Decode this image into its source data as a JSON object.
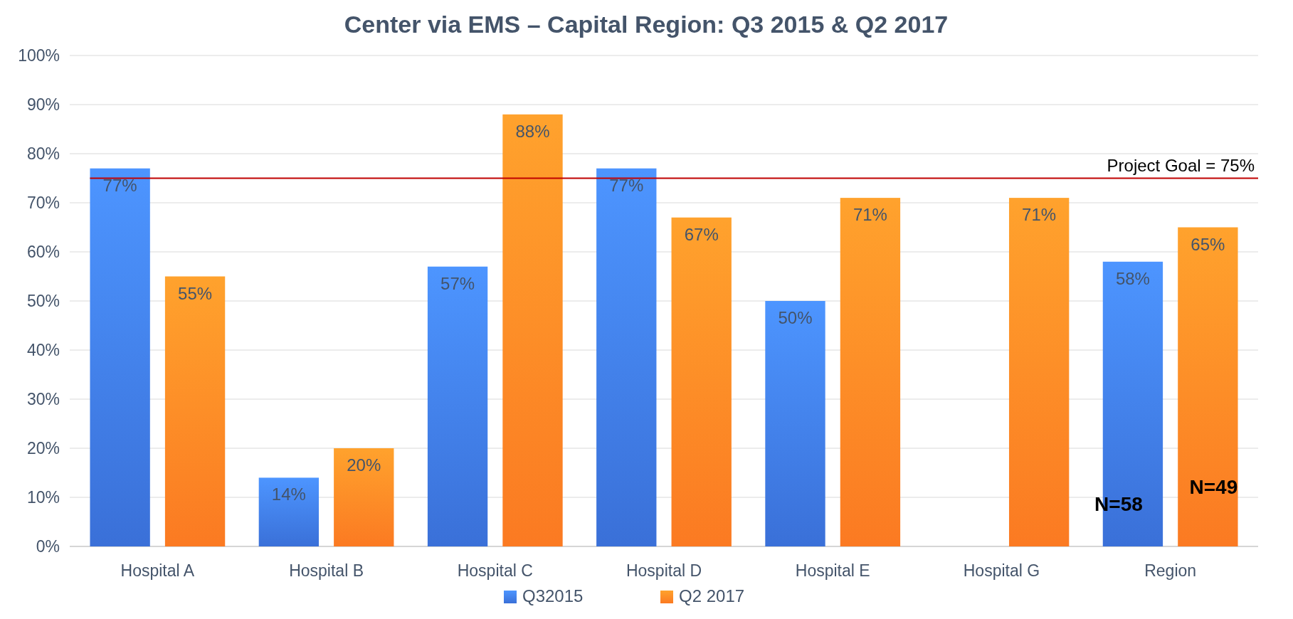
{
  "chart_data": {
    "type": "bar",
    "title": "Center via EMS – Capital Region: Q3 2015 & Q2 2017",
    "categories": [
      "Hospital A",
      "Hospital B",
      "Hospital C",
      "Hospital D",
      "Hospital E",
      "Hospital G",
      "Region"
    ],
    "series": [
      {
        "name": "Q32015",
        "color": "#3a70d8",
        "values": [
          77,
          14,
          57,
          77,
          50,
          null,
          58
        ],
        "value_labels": [
          "77%",
          "14%",
          "57%",
          "77%",
          "50%",
          null,
          "58%"
        ]
      },
      {
        "name": "Q2 2017",
        "color": "#fb7a22",
        "values": [
          55,
          20,
          88,
          67,
          71,
          71,
          65
        ],
        "value_labels": [
          "55%",
          "20%",
          "88%",
          "67%",
          "71%",
          "71%",
          "65%"
        ]
      }
    ],
    "ylim": [
      0,
      100
    ],
    "yticks": [
      {
        "value": 0,
        "label": "0%"
      },
      {
        "value": 10,
        "label": "10%"
      },
      {
        "value": 20,
        "label": "20%"
      },
      {
        "value": 30,
        "label": "30%"
      },
      {
        "value": 40,
        "label": "40%"
      },
      {
        "value": 50,
        "label": "50%"
      },
      {
        "value": 60,
        "label": "60%"
      },
      {
        "value": 70,
        "label": "70%"
      },
      {
        "value": 80,
        "label": "80%"
      },
      {
        "value": 90,
        "label": "90%"
      },
      {
        "value": 100,
        "label": "100%"
      }
    ],
    "grid": "y",
    "legend": "bottom",
    "ref_lines": [
      {
        "axis": "y",
        "value": 75,
        "label": "Project Goal = 75%",
        "color": "#c00000"
      }
    ],
    "annotations": [
      "N=58",
      "N=49"
    ]
  }
}
